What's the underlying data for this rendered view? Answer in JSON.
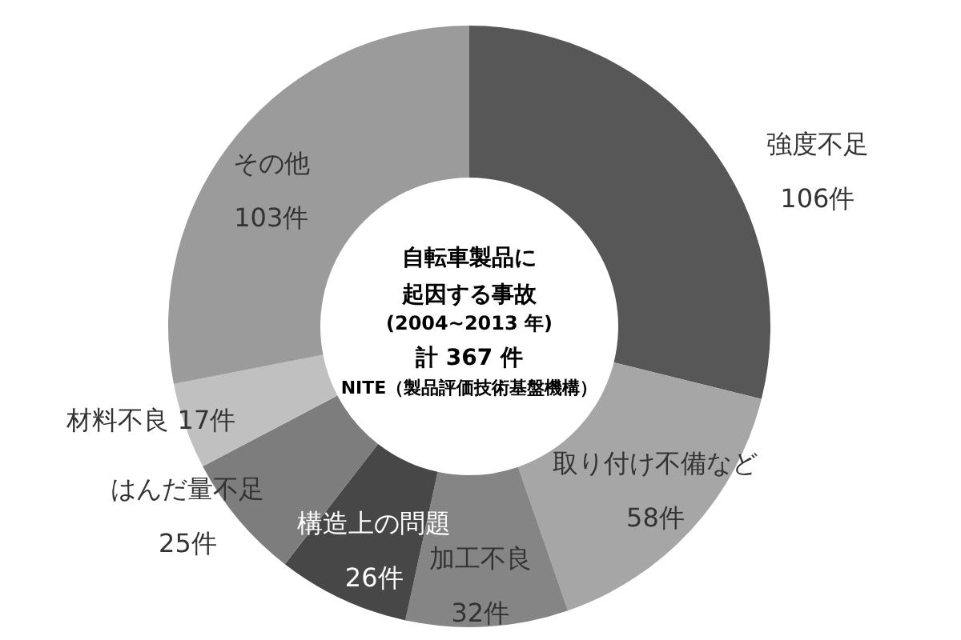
{
  "chart_data": {
    "type": "donut",
    "title": "自転車製品に起因する事故",
    "subtitle": "(2004~2013 年)",
    "annotations": [
      "計 367 件",
      "NITE（製品評価技術基盤機構）"
    ],
    "categories": [
      "強度不足",
      "取り付け不備など",
      "加工不良",
      "構造上の問題",
      "はんだ量不足",
      "材料不良",
      "その他"
    ],
    "values": [
      106,
      58,
      32,
      26,
      25,
      17,
      103
    ],
    "value_labels": [
      "106件",
      "58件",
      "32件",
      "26件",
      "25件",
      "17件",
      "103件"
    ],
    "colors": [
      "#575757",
      "#a6a6a6",
      "#858585",
      "#474747",
      "#7d7d7d",
      "#c0c0c0",
      "#9b9b9b"
    ]
  }
}
